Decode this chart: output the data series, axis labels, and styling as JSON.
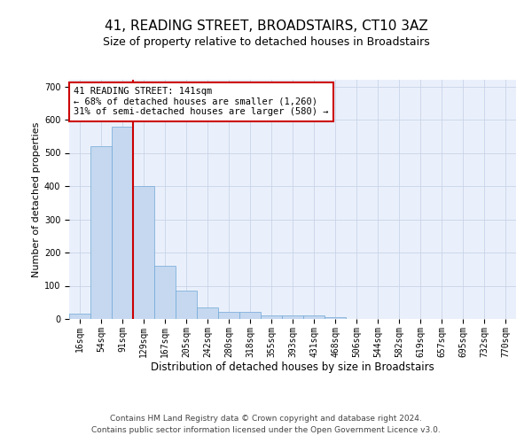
{
  "title": "41, READING STREET, BROADSTAIRS, CT10 3AZ",
  "subtitle": "Size of property relative to detached houses in Broadstairs",
  "xlabel": "Distribution of detached houses by size in Broadstairs",
  "ylabel": "Number of detached properties",
  "bar_values": [
    15,
    520,
    580,
    400,
    160,
    85,
    35,
    22,
    22,
    10,
    12,
    12,
    5,
    0,
    0,
    0,
    0,
    0,
    0,
    0,
    0
  ],
  "bin_labels": [
    "16sqm",
    "54sqm",
    "91sqm",
    "129sqm",
    "167sqm",
    "205sqm",
    "242sqm",
    "280sqm",
    "318sqm",
    "355sqm",
    "393sqm",
    "431sqm",
    "468sqm",
    "506sqm",
    "544sqm",
    "582sqm",
    "619sqm",
    "657sqm",
    "695sqm",
    "732sqm",
    "770sqm"
  ],
  "bar_color": "#c5d8f0",
  "bar_edge_color": "#6fa8d6",
  "bar_width": 1.0,
  "vline_x_index": 3,
  "vline_color": "#cc0000",
  "annotation_text": "41 READING STREET: 141sqm\n← 68% of detached houses are smaller (1,260)\n31% of semi-detached houses are larger (580) →",
  "annotation_box_color": "#ffffff",
  "annotation_edge_color": "#cc0000",
  "ylim": [
    0,
    720
  ],
  "yticks": [
    0,
    100,
    200,
    300,
    400,
    500,
    600,
    700
  ],
  "footer_line1": "Contains HM Land Registry data © Crown copyright and database right 2024.",
  "footer_line2": "Contains public sector information licensed under the Open Government Licence v3.0.",
  "plot_bg_color": "#eaf0fb",
  "fig_bg_color": "#ffffff",
  "grid_color": "#c8d4e8",
  "title_fontsize": 11,
  "subtitle_fontsize": 9,
  "axis_label_fontsize": 8,
  "tick_fontsize": 7,
  "annotation_fontsize": 7.5,
  "footer_fontsize": 6.5
}
